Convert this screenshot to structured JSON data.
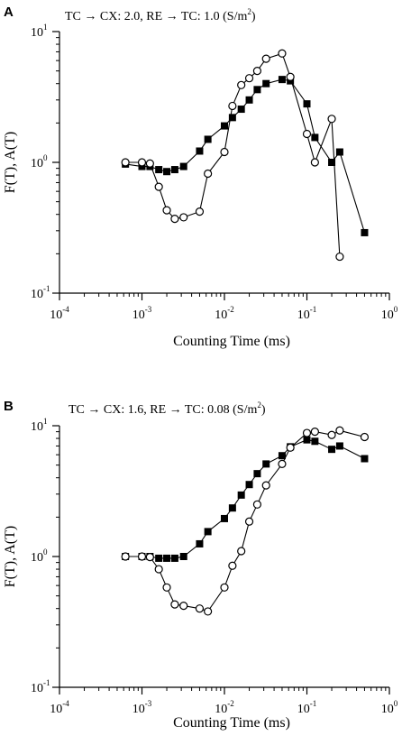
{
  "chart_data": [
    {
      "panel_label": "A",
      "type": "scatter",
      "title": "TC → CX: 2.0, RE → TC: 1.0 (S/m",
      "title_sup": "2",
      "title_close": ")",
      "xlabel": "Counting Time (ms)",
      "ylabel": "F(T), A(T)",
      "x_scale": "log",
      "y_scale": "log",
      "xlim": [
        0.0001,
        1
      ],
      "ylim": [
        0.1,
        10
      ],
      "x_ticks": [
        {
          "value": 0.0001,
          "base": "10",
          "exp": "-4"
        },
        {
          "value": 0.001,
          "base": "10",
          "exp": "-3"
        },
        {
          "value": 0.01,
          "base": "10",
          "exp": "-2"
        },
        {
          "value": 0.1,
          "base": "10",
          "exp": "-1"
        },
        {
          "value": 1,
          "base": "10",
          "exp": "0"
        }
      ],
      "y_ticks": [
        {
          "value": 0.1,
          "base": "10",
          "exp": "-1"
        },
        {
          "value": 1,
          "base": "10",
          "exp": "0"
        },
        {
          "value": 10,
          "base": "10",
          "exp": "1"
        }
      ],
      "series": [
        {
          "marker": "filled-square",
          "points": [
            [
              0.00063,
              0.97
            ],
            [
              0.001,
              0.93
            ],
            [
              0.00125,
              0.93
            ],
            [
              0.0016,
              0.88
            ],
            [
              0.002,
              0.85
            ],
            [
              0.0025,
              0.88
            ],
            [
              0.0032,
              0.93
            ],
            [
              0.005,
              1.22
            ],
            [
              0.0063,
              1.5
            ],
            [
              0.01,
              1.9
            ],
            [
              0.0125,
              2.2
            ],
            [
              0.016,
              2.55
            ],
            [
              0.02,
              3.0
            ],
            [
              0.025,
              3.6
            ],
            [
              0.032,
              4.0
            ],
            [
              0.05,
              4.3
            ],
            [
              0.063,
              4.2
            ],
            [
              0.1,
              2.8
            ],
            [
              0.125,
              1.55
            ],
            [
              0.2,
              1.0
            ],
            [
              0.25,
              1.2
            ],
            [
              0.5,
              0.29
            ]
          ]
        },
        {
          "marker": "open-circle",
          "points": [
            [
              0.00063,
              1.0
            ],
            [
              0.001,
              1.0
            ],
            [
              0.00125,
              0.98
            ],
            [
              0.0016,
              0.65
            ],
            [
              0.002,
              0.43
            ],
            [
              0.0025,
              0.37
            ],
            [
              0.0032,
              0.38
            ],
            [
              0.005,
              0.42
            ],
            [
              0.0063,
              0.82
            ],
            [
              0.01,
              1.2
            ],
            [
              0.0125,
              2.7
            ],
            [
              0.016,
              3.9
            ],
            [
              0.02,
              4.4
            ],
            [
              0.025,
              5.0
            ],
            [
              0.032,
              6.2
            ],
            [
              0.05,
              6.8
            ],
            [
              0.063,
              4.5
            ],
            [
              0.1,
              1.65
            ],
            [
              0.125,
              1.0
            ],
            [
              0.2,
              2.15
            ],
            [
              0.25,
              0.19
            ]
          ]
        }
      ]
    },
    {
      "panel_label": "B",
      "type": "scatter",
      "title": "TC → CX: 1.6, RE → TC: 0.08 (S/m",
      "title_sup": "2",
      "title_close": ")",
      "xlabel": "Counting Time (ms)",
      "ylabel": "F(T), A(T)",
      "x_scale": "log",
      "y_scale": "log",
      "xlim": [
        0.0001,
        1
      ],
      "ylim": [
        0.1,
        10
      ],
      "x_ticks": [
        {
          "value": 0.0001,
          "base": "10",
          "exp": "-4"
        },
        {
          "value": 0.001,
          "base": "10",
          "exp": "-3"
        },
        {
          "value": 0.01,
          "base": "10",
          "exp": "-2"
        },
        {
          "value": 0.1,
          "base": "10",
          "exp": "-1"
        },
        {
          "value": 1,
          "base": "10",
          "exp": "0"
        }
      ],
      "y_ticks": [
        {
          "value": 0.1,
          "base": "10",
          "exp": "-1"
        },
        {
          "value": 1,
          "base": "10",
          "exp": "0"
        },
        {
          "value": 10,
          "base": "10",
          "exp": "1"
        }
      ],
      "series": [
        {
          "marker": "filled-square",
          "points": [
            [
              0.00063,
              1.0
            ],
            [
              0.001,
              1.0
            ],
            [
              0.00125,
              1.0
            ],
            [
              0.0016,
              0.97
            ],
            [
              0.002,
              0.97
            ],
            [
              0.0025,
              0.97
            ],
            [
              0.0032,
              1.0
            ],
            [
              0.005,
              1.25
            ],
            [
              0.0063,
              1.55
            ],
            [
              0.01,
              1.95
            ],
            [
              0.0125,
              2.35
            ],
            [
              0.016,
              2.95
            ],
            [
              0.02,
              3.55
            ],
            [
              0.025,
              4.3
            ],
            [
              0.032,
              5.1
            ],
            [
              0.05,
              5.9
            ],
            [
              0.063,
              6.9
            ],
            [
              0.1,
              7.8
            ],
            [
              0.125,
              7.6
            ],
            [
              0.2,
              6.6
            ],
            [
              0.25,
              7.0
            ],
            [
              0.5,
              5.6
            ]
          ]
        },
        {
          "marker": "open-circle",
          "points": [
            [
              0.00063,
              1.0
            ],
            [
              0.001,
              1.0
            ],
            [
              0.00125,
              0.99
            ],
            [
              0.0016,
              0.8
            ],
            [
              0.002,
              0.58
            ],
            [
              0.0025,
              0.43
            ],
            [
              0.0032,
              0.42
            ],
            [
              0.005,
              0.4
            ],
            [
              0.0063,
              0.38
            ],
            [
              0.01,
              0.58
            ],
            [
              0.0125,
              0.85
            ],
            [
              0.016,
              1.1
            ],
            [
              0.02,
              1.85
            ],
            [
              0.025,
              2.5
            ],
            [
              0.032,
              3.5
            ],
            [
              0.05,
              5.1
            ],
            [
              0.063,
              6.8
            ],
            [
              0.1,
              8.8
            ],
            [
              0.125,
              9.0
            ],
            [
              0.2,
              8.5
            ],
            [
              0.25,
              9.2
            ],
            [
              0.5,
              8.2
            ]
          ]
        }
      ]
    }
  ]
}
